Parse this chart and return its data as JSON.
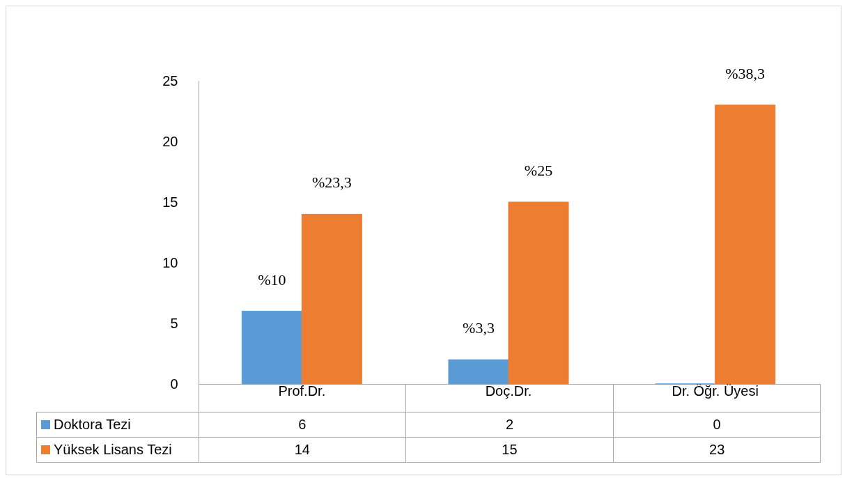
{
  "chart_data": {
    "type": "bar",
    "categories": [
      "Prof.Dr.",
      "Doç.Dr.",
      "Dr. Öğr. Üyesi"
    ],
    "series": [
      {
        "name": "Doktora Tezi",
        "color": "#5b9bd5",
        "values": [
          6,
          2,
          0
        ]
      },
      {
        "name": "Yüksek Lisans Tezi",
        "color": "#ed7d31",
        "values": [
          14,
          15,
          23
        ]
      }
    ],
    "annotations": [
      {
        "text": "%10",
        "x": "Prof.Dr.",
        "y": 6
      },
      {
        "text": "%3,3",
        "x": "Doç.Dr.",
        "y": 2
      },
      {
        "text": "%23,3",
        "x": "Prof.Dr.",
        "y": 14
      },
      {
        "text": "%25",
        "x": "Doç.Dr.",
        "y": 15
      },
      {
        "text": "%38,3",
        "x": "Dr. Öğr. Üyesi",
        "y": 23
      }
    ],
    "ylim": [
      0,
      25
    ],
    "yticks": [
      0,
      5,
      10,
      15,
      20,
      25
    ],
    "grid": false,
    "legend": "bottom",
    "data_labels": true
  }
}
